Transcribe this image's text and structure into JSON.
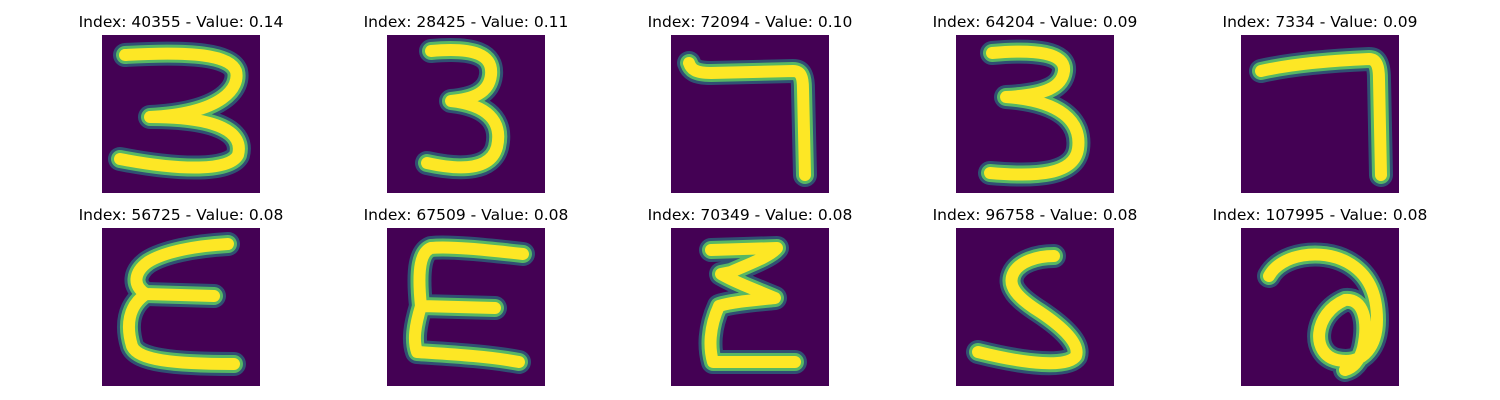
{
  "colors": {
    "background": "#ffffff",
    "image_background": "#440154",
    "stroke_edge": "#21918c",
    "stroke_mid": "#5ec962",
    "stroke_core": "#fde725",
    "title_text": "#000000"
  },
  "panels": [
    {
      "title": "Index: 40355 - Value: 0.14",
      "glyph": "3"
    },
    {
      "title": "Index: 28425 - Value: 0.11",
      "glyph": "3"
    },
    {
      "title": "Index: 72094 - Value: 0.10",
      "glyph": "7"
    },
    {
      "title": "Index: 64204 - Value: 0.09",
      "glyph": "3"
    },
    {
      "title": "Index: 7334 - Value: 0.09",
      "glyph": "7"
    },
    {
      "title": "Index: 56725 - Value: 0.08",
      "glyph": "E"
    },
    {
      "title": "Index: 67509 - Value: 0.08",
      "glyph": "E"
    },
    {
      "title": "Index: 70349 - Value: 0.08",
      "glyph": "E"
    },
    {
      "title": "Index: 96758 - Value: 0.08",
      "glyph": "S"
    },
    {
      "title": "Index: 107995 - Value: 0.08",
      "glyph": "a"
    }
  ]
}
